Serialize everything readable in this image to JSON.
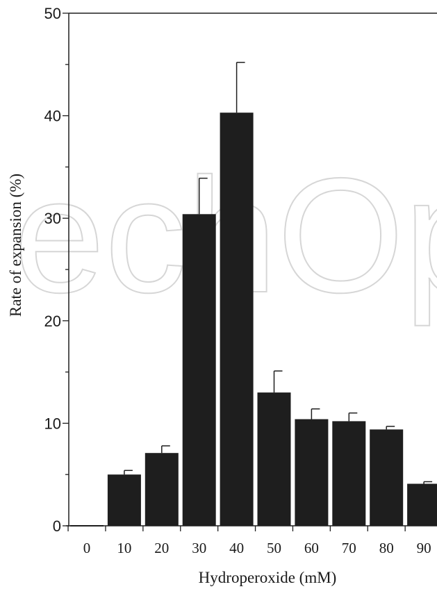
{
  "chart_data": {
    "type": "bar",
    "categories": [
      "0",
      "10",
      "20",
      "30",
      "40",
      "50",
      "60",
      "70",
      "80",
      "90"
    ],
    "values": [
      0,
      5.0,
      7.1,
      30.4,
      40.3,
      13.0,
      10.4,
      10.2,
      9.4,
      4.1
    ],
    "errors": [
      0,
      0.4,
      0.7,
      3.5,
      4.9,
      2.1,
      1.0,
      0.8,
      0.3,
      0.2
    ],
    "title": "",
    "xlabel": "Hydroperoxide (mM)",
    "ylabel": "Rate of expansion (%)",
    "ylim": [
      0,
      50
    ],
    "yticks": [
      "0",
      "10",
      "20",
      "30",
      "40",
      "50"
    ],
    "grid": false,
    "bar_color": "#1e1e1e",
    "watermark": "echOp"
  }
}
